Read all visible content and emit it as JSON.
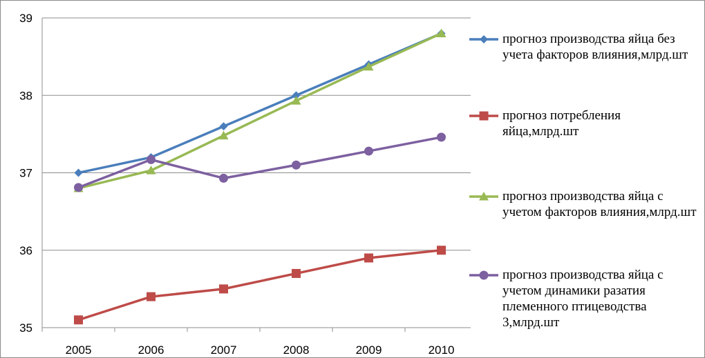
{
  "chart_data": {
    "type": "line",
    "categories": [
      "2005",
      "2006",
      "2007",
      "2008",
      "2009",
      "2010"
    ],
    "ylim": [
      35,
      39
    ],
    "yticks": [
      "35",
      "36",
      "37",
      "38",
      "39"
    ],
    "grid": "horizontal",
    "legend_position": "right",
    "series": [
      {
        "name": "прогноз производства яйца без учета факторов влияния,млрд.шт",
        "values": [
          37.0,
          37.2,
          37.6,
          38.0,
          38.4,
          38.8
        ],
        "color": "#4a7ebb",
        "marker": "diamond"
      },
      {
        "name": "прогноз потребления яйца,млрд.шт",
        "values": [
          35.1,
          35.4,
          35.5,
          35.7,
          35.9,
          36.0
        ],
        "color": "#be4b48",
        "marker": "square"
      },
      {
        "name": "прогноз производства яйца с учетом факторов влияния,млрд.шт",
        "values": [
          36.8,
          37.03,
          37.48,
          37.93,
          38.37,
          38.8
        ],
        "color": "#98b954",
        "marker": "triangle"
      },
      {
        "name": "прогноз производства яйца с учетом динамики разатия племенного птицеводства 3,млрд.шт",
        "values": [
          36.81,
          37.17,
          36.93,
          37.1,
          37.28,
          37.46
        ],
        "color": "#7d60a0",
        "marker": "circle"
      }
    ]
  }
}
